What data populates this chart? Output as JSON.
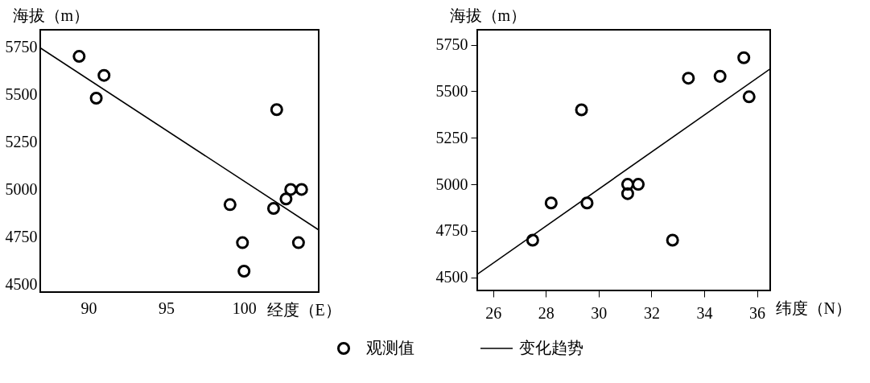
{
  "chart_data": [
    {
      "type": "scatter",
      "xlabel": "经度（E）",
      "ylabel": "海拔（m）",
      "xlim": [
        86.9,
        104.8
      ],
      "ylim": [
        4460,
        5840
      ],
      "xticks": [
        90,
        95,
        100
      ],
      "yticks": [
        4500,
        4750,
        5000,
        5250,
        5500,
        5750
      ],
      "grid": false,
      "legend": "bottom",
      "series": [
        {
          "name": "观测值",
          "marker": "circle",
          "color": "#000000",
          "x": [
            89.4,
            91.0,
            90.5,
            102.1,
            99.1,
            99.9,
            100.0,
            101.9,
            102.7,
            103.0,
            103.7,
            103.5
          ],
          "values": [
            5700,
            5600,
            5480,
            5420,
            4920,
            4720,
            4570,
            4900,
            4950,
            5000,
            5000,
            4720
          ]
        },
        {
          "name": "变化趋势",
          "type": "line",
          "color": "#000000",
          "line_style": "solid",
          "x": [
            86.9,
            104.8
          ],
          "values": [
            5745,
            4787
          ]
        }
      ]
    },
    {
      "type": "scatter",
      "xlabel": "纬度（N）",
      "ylabel": "海拔（m）",
      "xlim": [
        25.4,
        36.5
      ],
      "ylim": [
        4430,
        5830
      ],
      "xticks": [
        26,
        28,
        30,
        32,
        34,
        36
      ],
      "yticks": [
        4500,
        4750,
        5000,
        5250,
        5500,
        5750
      ],
      "grid": false,
      "series": [
        {
          "marker": "circle",
          "color": "#000000",
          "x": [
            27.5,
            28.2,
            29.35,
            29.56,
            31.1,
            31.1,
            31.5,
            32.8,
            33.4,
            34.6,
            35.5,
            35.7
          ],
          "values": [
            4700,
            4900,
            5400,
            4900,
            5000,
            4950,
            5000,
            4700,
            5570,
            5580,
            5680,
            5470
          ]
        },
        {
          "type": "line",
          "color": "#000000",
          "line_style": "solid",
          "x": [
            25.4,
            36.5
          ],
          "values": [
            4517,
            5620
          ]
        }
      ]
    }
  ]
}
